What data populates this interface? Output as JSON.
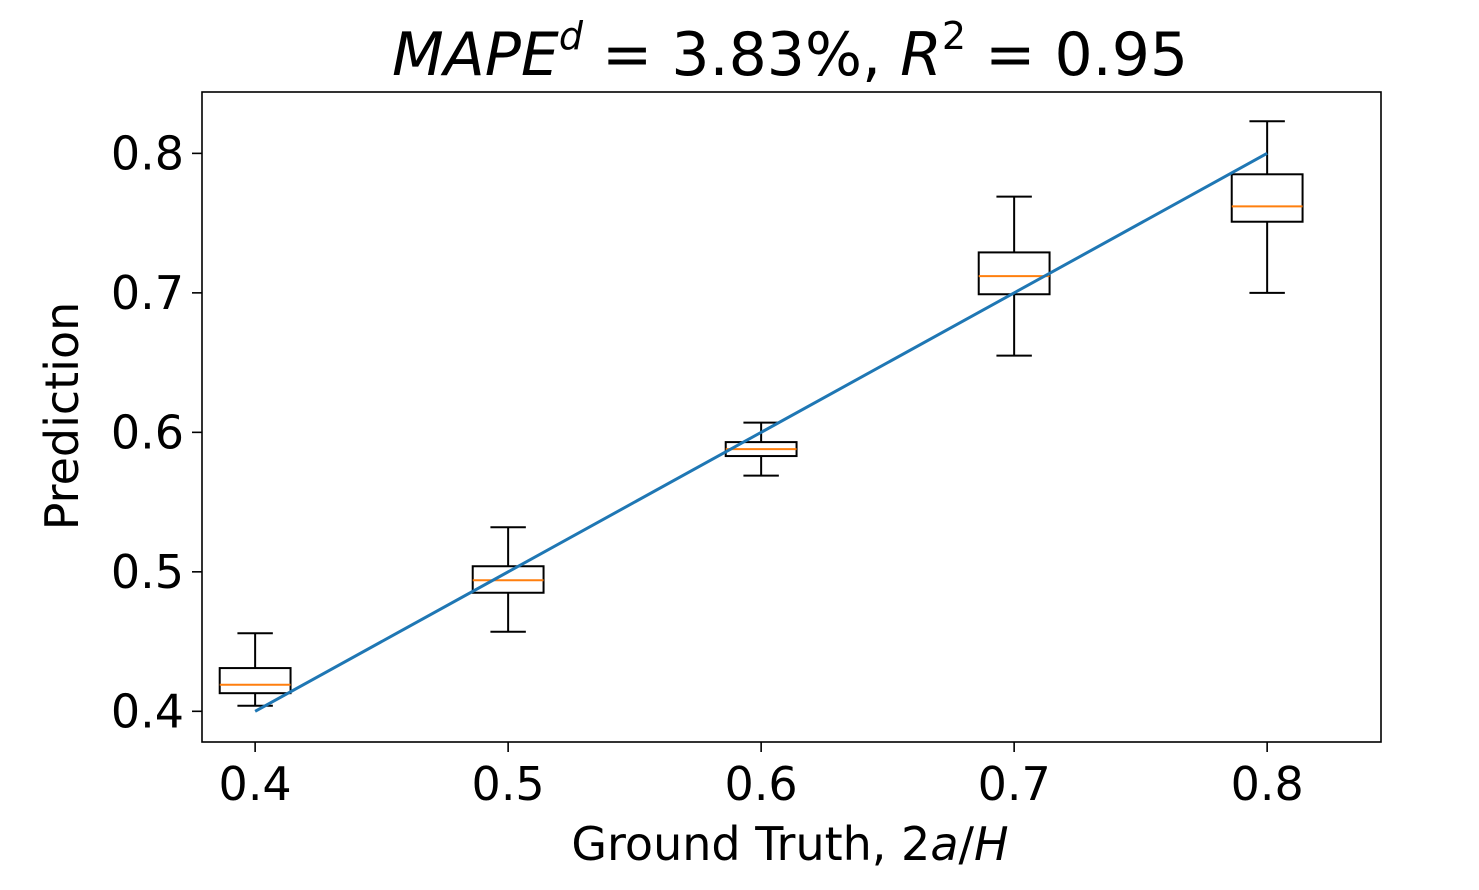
{
  "chart_data": {
    "type": "box",
    "title": {
      "metric1_name": "MAPE",
      "metric1_sup": "d",
      "metric1_value": " = 3.83%, ",
      "metric2_name": "R",
      "metric2_sup": "2",
      "metric2_value": " = 0.95"
    },
    "xlabel": {
      "prefix": "Ground Truth, 2",
      "italic_a": "a",
      "slash": "/",
      "italic_H": "H"
    },
    "ylabel": "Prediction",
    "xlim": [
      0.379,
      0.845
    ],
    "ylim": [
      0.378,
      0.844
    ],
    "xticks": [
      {
        "value": 0.4,
        "label": "0.4"
      },
      {
        "value": 0.5,
        "label": "0.5"
      },
      {
        "value": 0.6,
        "label": "0.6"
      },
      {
        "value": 0.7,
        "label": "0.7"
      },
      {
        "value": 0.8,
        "label": "0.8"
      }
    ],
    "yticks": [
      {
        "value": 0.4,
        "label": "0.4"
      },
      {
        "value": 0.5,
        "label": "0.5"
      },
      {
        "value": 0.6,
        "label": "0.6"
      },
      {
        "value": 0.7,
        "label": "0.7"
      },
      {
        "value": 0.8,
        "label": "0.8"
      }
    ],
    "box_width": 0.028,
    "boxes": [
      {
        "x": 0.4,
        "whisker_low": 0.404,
        "q1": 0.413,
        "median": 0.419,
        "q3": 0.431,
        "whisker_high": 0.456
      },
      {
        "x": 0.5,
        "whisker_low": 0.457,
        "q1": 0.485,
        "median": 0.494,
        "q3": 0.504,
        "whisker_high": 0.532
      },
      {
        "x": 0.6,
        "whisker_low": 0.569,
        "q1": 0.583,
        "median": 0.588,
        "q3": 0.593,
        "whisker_high": 0.607
      },
      {
        "x": 0.7,
        "whisker_low": 0.655,
        "q1": 0.699,
        "median": 0.712,
        "q3": 0.729,
        "whisker_high": 0.769
      },
      {
        "x": 0.8,
        "whisker_low": 0.7,
        "q1": 0.751,
        "median": 0.762,
        "q3": 0.785,
        "whisker_high": 0.823
      }
    ],
    "reference_line": {
      "x": [
        0.4,
        0.8
      ],
      "y": [
        0.4,
        0.8
      ]
    },
    "colors": {
      "median": "#ff7f0e",
      "reference_line": "#1f77b4",
      "box": "#000000"
    },
    "grid": false,
    "legend": "none"
  }
}
